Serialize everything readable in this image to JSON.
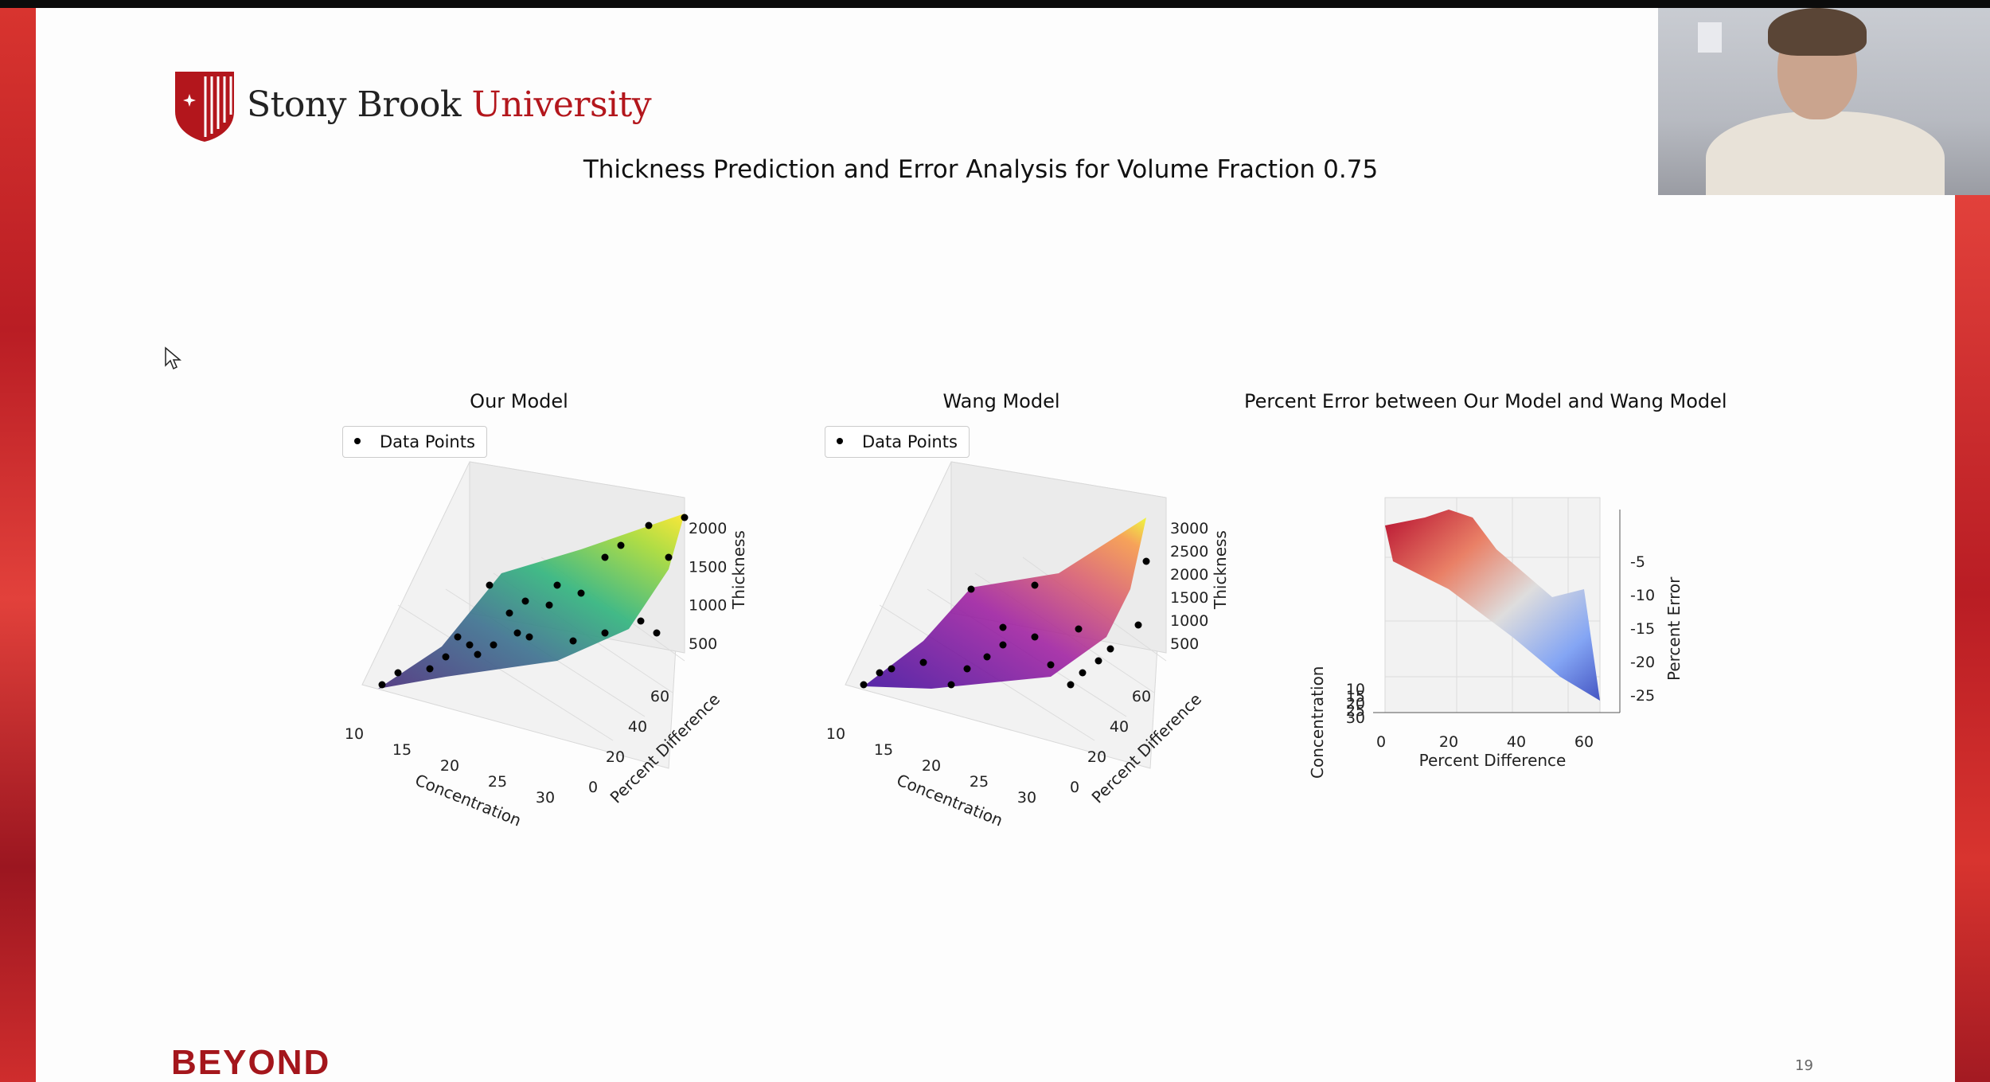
{
  "logo": {
    "name_part1": "Stony Brook",
    "name_part2": "University"
  },
  "slide_title": "Thickness Prediction and Error Analysis for Volume Fraction 0.75",
  "footer": {
    "brand": "BEYOND",
    "page_number": "19"
  },
  "colors": {
    "brand_red": "#b3161c",
    "deco_red": "#d8342f"
  },
  "webcam": {
    "label": "presenter webcam"
  },
  "chart_data": [
    {
      "type": "surface3d",
      "title": "Our Model",
      "legend": [
        "Data Points"
      ],
      "legend_label": "Data Points",
      "xlabel": "Concentration",
      "ylabel": "Percent Difference",
      "zlabel": "Thickness",
      "x_ticks": [
        "10",
        "15",
        "20",
        "25",
        "30"
      ],
      "y_ticks": [
        "0",
        "20",
        "40",
        "60"
      ],
      "z_ticks": [
        "500",
        "1000",
        "1500",
        "2000"
      ],
      "colormap": "viridis",
      "legend_position": "top-left"
    },
    {
      "type": "surface3d",
      "title": "Wang Model",
      "legend": [
        "Data Points"
      ],
      "legend_label": "Data Points",
      "xlabel": "Concentration",
      "ylabel": "Percent Difference",
      "zlabel": "Thickness",
      "x_ticks": [
        "10",
        "15",
        "20",
        "25",
        "30"
      ],
      "y_ticks": [
        "0",
        "20",
        "40",
        "60"
      ],
      "z_ticks": [
        "500",
        "1000",
        "1500",
        "2000",
        "2500",
        "3000"
      ],
      "colormap": "plasma",
      "legend_position": "top-left"
    },
    {
      "type": "surface3d",
      "title": "Percent Error between Our Model and Wang Model",
      "xlabel": "Percent Difference",
      "ylabel": "Concentration",
      "zlabel": "Percent Error",
      "x_ticks": [
        "0",
        "20",
        "40",
        "60"
      ],
      "y_ticks": [
        "10",
        "15",
        "20",
        "25",
        "30"
      ],
      "z_ticks": [
        "-5",
        "-10",
        "-15",
        "-20",
        "-25"
      ],
      "colormap": "coolwarm"
    }
  ]
}
